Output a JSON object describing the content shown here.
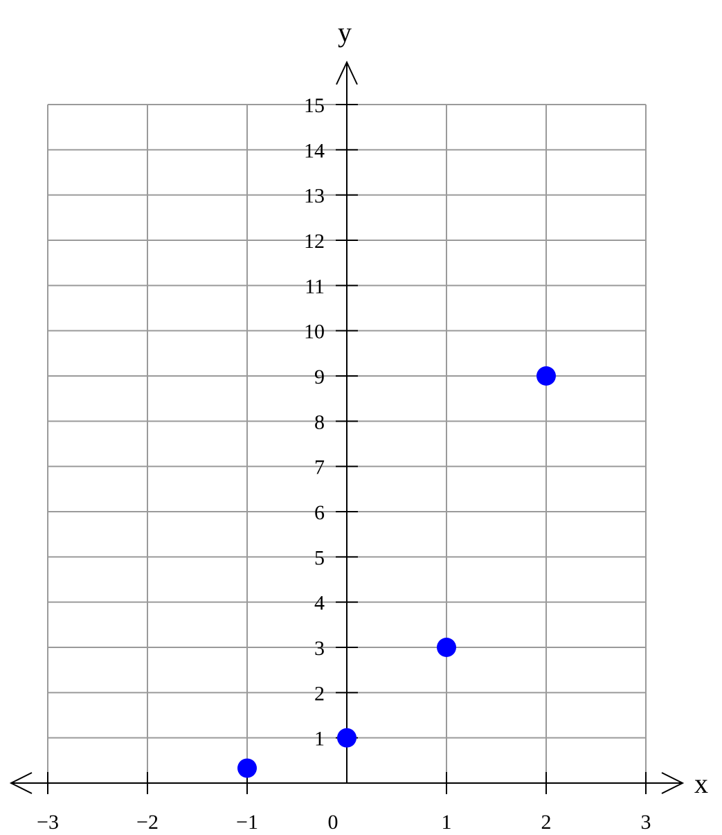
{
  "chart_data": {
    "type": "scatter",
    "xlabel": "x",
    "ylabel": "y",
    "xlim": [
      -3,
      3
    ],
    "ylim": [
      0,
      15
    ],
    "grid": true,
    "x_ticks": [
      -3,
      -2,
      -1,
      0,
      1,
      2,
      3
    ],
    "x_tick_labels": [
      "−3",
      "−2",
      "−1",
      "0",
      "1",
      "2",
      "3"
    ],
    "y_ticks": [
      1,
      2,
      3,
      4,
      5,
      6,
      7,
      8,
      9,
      10,
      11,
      12,
      13,
      14,
      15
    ],
    "y_tick_labels": [
      "1",
      "2",
      "3",
      "4",
      "5",
      "6",
      "7",
      "8",
      "9",
      "10",
      "11",
      "12",
      "13",
      "14",
      "15"
    ],
    "series": [
      {
        "color": "#0000ff",
        "points": [
          {
            "x": -1,
            "y": 0.33
          },
          {
            "x": 0,
            "y": 1
          },
          {
            "x": 1,
            "y": 3
          },
          {
            "x": 2,
            "y": 9
          }
        ]
      }
    ]
  }
}
